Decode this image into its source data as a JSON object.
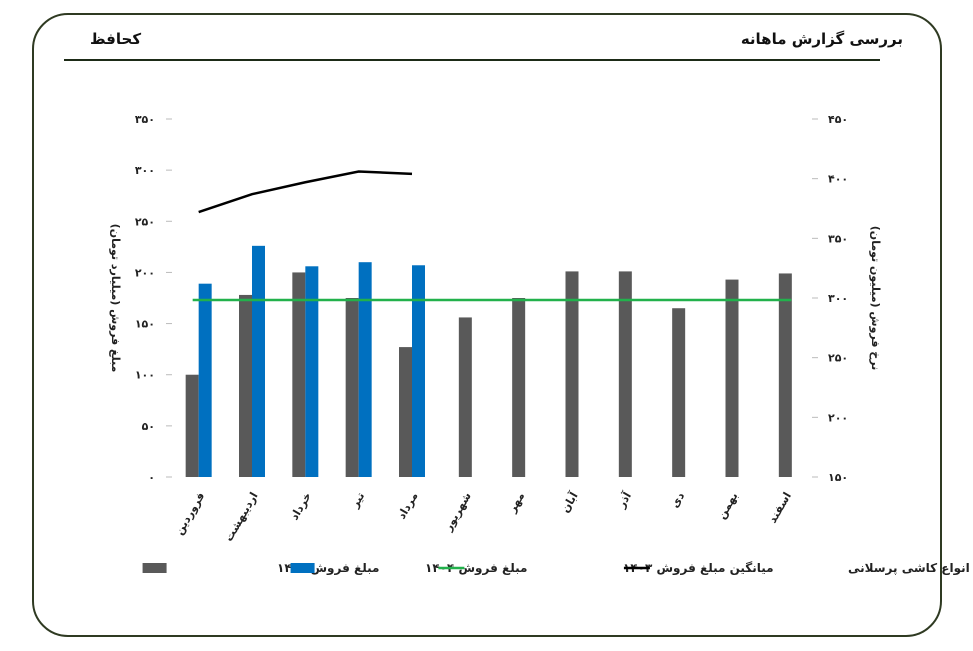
{
  "header": {
    "title": "بررسی گزارش ماهانه",
    "company": "کحافظ"
  },
  "chart_data": {
    "type": "bar",
    "categories": [
      "فروردین",
      "اردیبهشت",
      "خرداد",
      "تیر",
      "مرداد",
      "شهریور",
      "مهر",
      "آبان",
      "آذر",
      "دی",
      "بهمن",
      "اسفند"
    ],
    "series": [
      {
        "name": "مبلغ فروش ۱۴۰۳",
        "type": "bar",
        "axis": "left",
        "color": "#595959",
        "values": [
          100,
          178,
          200,
          175,
          127,
          156,
          175,
          201,
          201,
          165,
          193,
          199
        ]
      },
      {
        "name": "مبلغ فروش ۱۴۰۴",
        "type": "bar",
        "axis": "left",
        "color": "#0070c0",
        "values": [
          189,
          226,
          206,
          210,
          207,
          null,
          null,
          null,
          null,
          null,
          null,
          null
        ]
      },
      {
        "name": "میانگین مبلغ فروش ۱۴۰۳",
        "type": "line",
        "axis": "left",
        "color": "#22b14c",
        "values": [
          173,
          173,
          173,
          173,
          173,
          173,
          173,
          173,
          173,
          173,
          173,
          173
        ]
      },
      {
        "name": "نرخ فروش انواع کاشی پرسلانی",
        "type": "line",
        "axis": "right",
        "color": "#000000",
        "values": [
          372,
          387,
          397,
          406,
          404,
          null,
          null,
          null,
          null,
          null,
          null,
          null
        ]
      }
    ],
    "y_left": {
      "label": "مبلغ فروش (میلیارد تومان)",
      "min": 0,
      "max": 350,
      "ticks": [
        "۰",
        "۵۰",
        "۱۰۰",
        "۱۵۰",
        "۲۰۰",
        "۲۵۰",
        "۳۰۰",
        "۳۵۰"
      ]
    },
    "y_right": {
      "label": "نرخ فروش (میلیون تومان)",
      "min": 150,
      "max": 450,
      "ticks": [
        "۱۵۰",
        "۲۰۰",
        "۲۵۰",
        "۳۰۰",
        "۳۵۰",
        "۴۰۰",
        "۴۵۰"
      ]
    },
    "grid": false,
    "legend_position": "bottom"
  }
}
